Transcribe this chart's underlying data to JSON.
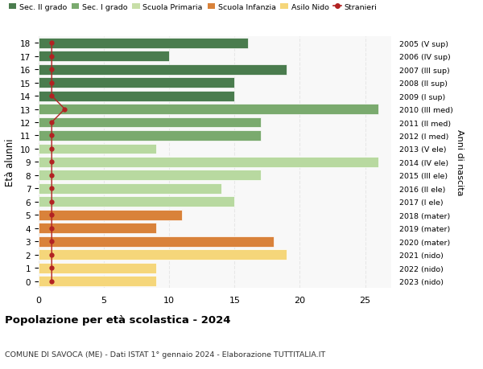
{
  "ages": [
    18,
    17,
    16,
    15,
    14,
    13,
    12,
    11,
    10,
    9,
    8,
    7,
    6,
    5,
    4,
    3,
    2,
    1,
    0
  ],
  "years": [
    "2005 (V sup)",
    "2006 (IV sup)",
    "2007 (III sup)",
    "2008 (II sup)",
    "2009 (I sup)",
    "2010 (III med)",
    "2011 (II med)",
    "2012 (I med)",
    "2013 (V ele)",
    "2014 (IV ele)",
    "2015 (III ele)",
    "2016 (II ele)",
    "2017 (I ele)",
    "2018 (mater)",
    "2019 (mater)",
    "2020 (mater)",
    "2021 (nido)",
    "2022 (nido)",
    "2023 (nido)"
  ],
  "bar_values": [
    16,
    10,
    19,
    15,
    15,
    26,
    17,
    17,
    9,
    26,
    17,
    14,
    15,
    11,
    9,
    18,
    19,
    9,
    9
  ],
  "bar_colors": [
    "#4a7c4e",
    "#4a7c4e",
    "#4a7c4e",
    "#4a7c4e",
    "#4a7c4e",
    "#7aaa6e",
    "#7aaa6e",
    "#7aaa6e",
    "#b8d9a0",
    "#b8d9a0",
    "#b8d9a0",
    "#b8d9a0",
    "#b8d9a0",
    "#d9823a",
    "#d9823a",
    "#d9823a",
    "#f5d67a",
    "#f5d67a",
    "#f5d67a"
  ],
  "stranieri_values": [
    1,
    1,
    1,
    1,
    1,
    2,
    1,
    1,
    1,
    1,
    1,
    1,
    1,
    1,
    1,
    1,
    1,
    1,
    1
  ],
  "stranieri_color": "#b22222",
  "legend_labels": [
    "Sec. II grado",
    "Sec. I grado",
    "Scuola Primaria",
    "Scuola Infanzia",
    "Asilo Nido",
    "Stranieri"
  ],
  "legend_colors": [
    "#4a7c4e",
    "#7aaa6e",
    "#c8dfa8",
    "#d9823a",
    "#f5d67a",
    "#b22222"
  ],
  "ylabel": "Età alunni",
  "right_label": "Anni di nascita",
  "title": "Popolazione per età scolastica - 2024",
  "subtitle": "COMUNE DI SAVOCA (ME) - Dati ISTAT 1° gennaio 2024 - Elaborazione TUTTITALIA.IT",
  "xlim": [
    0,
    27
  ],
  "xticks": [
    0,
    5,
    10,
    15,
    20,
    25
  ],
  "bg_color": "#ffffff",
  "plot_bg_color": "#f8f8f8",
  "grid_color": "#dddddd"
}
